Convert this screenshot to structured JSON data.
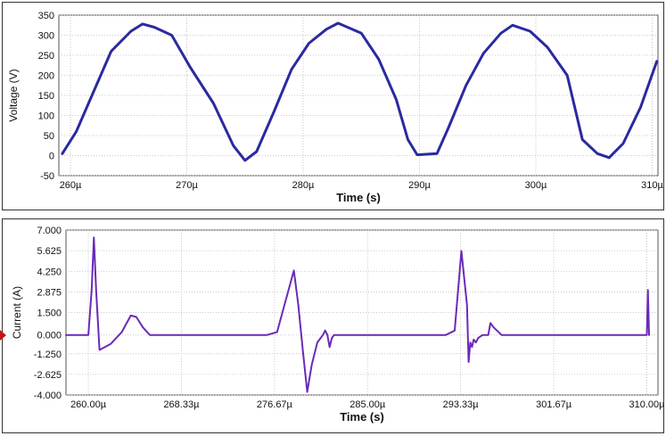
{
  "chart_data": [
    {
      "type": "line",
      "title": "",
      "xlabel": "Time (s)",
      "ylabel": "Voltage (V)",
      "xlim": [
        259.0,
        310.5
      ],
      "ylim": [
        -50,
        350
      ],
      "x_ticks": [
        260,
        270,
        280,
        290,
        300,
        310
      ],
      "x_tick_labels": [
        "260µ",
        "270µ",
        "280µ",
        "290µ",
        "300µ",
        "310µ"
      ],
      "y_ticks": [
        350,
        300,
        250,
        200,
        150,
        100,
        50,
        0,
        -50
      ],
      "y_tick_labels": [
        "350",
        "300",
        "250",
        "200",
        "150",
        "100",
        "50",
        "0",
        "-50"
      ],
      "grid": true,
      "color": "#2a2aa0",
      "series": [
        {
          "x": [
            259.3,
            260.5,
            262.0,
            263.5,
            265.2,
            266.2,
            267.2,
            268.7,
            270.3,
            272.3,
            274.0,
            275.0,
            276.0,
            277.5,
            279.0,
            280.5,
            282.0,
            283.0,
            285.0,
            286.5,
            288.0,
            289.0,
            289.8,
            291.5,
            292.5,
            294.0,
            295.5,
            297.0,
            298.0,
            299.5,
            301.0,
            302.7,
            304.0,
            305.3,
            306.3,
            307.5,
            309.0,
            310.4
          ],
          "y": [
            5,
            60,
            160,
            260,
            310,
            328,
            320,
            300,
            220,
            130,
            25,
            -12,
            10,
            110,
            215,
            280,
            315,
            330,
            305,
            240,
            140,
            40,
            2,
            5,
            70,
            175,
            255,
            305,
            325,
            310,
            270,
            200,
            40,
            5,
            -5,
            30,
            120,
            235
          ]
        }
      ]
    },
    {
      "type": "line",
      "title": "",
      "xlabel": "Time (s)",
      "ylabel": "Current (A)",
      "xlim": [
        258.0,
        311.0
      ],
      "ylim": [
        -4.0,
        7.0
      ],
      "x_ticks": [
        260.0,
        268.33,
        276.67,
        285.0,
        293.33,
        301.67,
        310.0
      ],
      "x_tick_labels": [
        "260.00µ",
        "268.33µ",
        "276.67µ",
        "285.00µ",
        "293.33µ",
        "301.67µ",
        "310.00µ"
      ],
      "y_ticks": [
        7.0,
        5.625,
        4.25,
        2.875,
        1.5,
        0.0,
        -1.25,
        -2.625,
        -4.0
      ],
      "y_tick_labels": [
        "7.000",
        "5.625",
        "4.250",
        "2.875",
        "1.500",
        "0.000",
        "-1.250",
        "-2.625",
        "-4.000"
      ],
      "grid": true,
      "color": "#6a2ab8",
      "series": [
        {
          "x": [
            258.0,
            260.0,
            260.3,
            260.5,
            260.7,
            261.0,
            262.0,
            263.0,
            263.8,
            264.3,
            264.9,
            265.5,
            266.5,
            270.0,
            276.0,
            276.9,
            278.4,
            278.8,
            279.2,
            279.6,
            280.0,
            280.5,
            281.0,
            281.2,
            281.4,
            281.6,
            281.8,
            282.0,
            282.4,
            282.6,
            282.8,
            283.0,
            283.5,
            290.0,
            292.0,
            292.8,
            293.4,
            293.9,
            294.05,
            294.2,
            294.35,
            294.5,
            294.7,
            294.9,
            295.3,
            295.8,
            296.0,
            296.3,
            297.0,
            297.5,
            298.0,
            302.0,
            306.0,
            309.5,
            310.0,
            310.1,
            310.2
          ],
          "y": [
            0.0,
            0.0,
            3.0,
            6.5,
            3.0,
            -1.0,
            -0.6,
            0.2,
            1.3,
            1.2,
            0.5,
            0.0,
            0.0,
            0.0,
            0.0,
            0.2,
            4.3,
            2.0,
            -1.0,
            -3.8,
            -2.0,
            -0.5,
            0.0,
            0.3,
            0.0,
            -0.8,
            -0.2,
            0.0,
            0.0,
            0.0,
            0.0,
            0.0,
            0.0,
            0.0,
            0.0,
            0.3,
            5.6,
            2.0,
            -1.8,
            -0.5,
            -0.8,
            -0.3,
            -0.5,
            -0.2,
            0.0,
            0.0,
            0.8,
            0.5,
            0.0,
            0.0,
            0.0,
            0.0,
            0.0,
            0.0,
            0.0,
            3.0,
            0.0
          ]
        }
      ]
    }
  ]
}
